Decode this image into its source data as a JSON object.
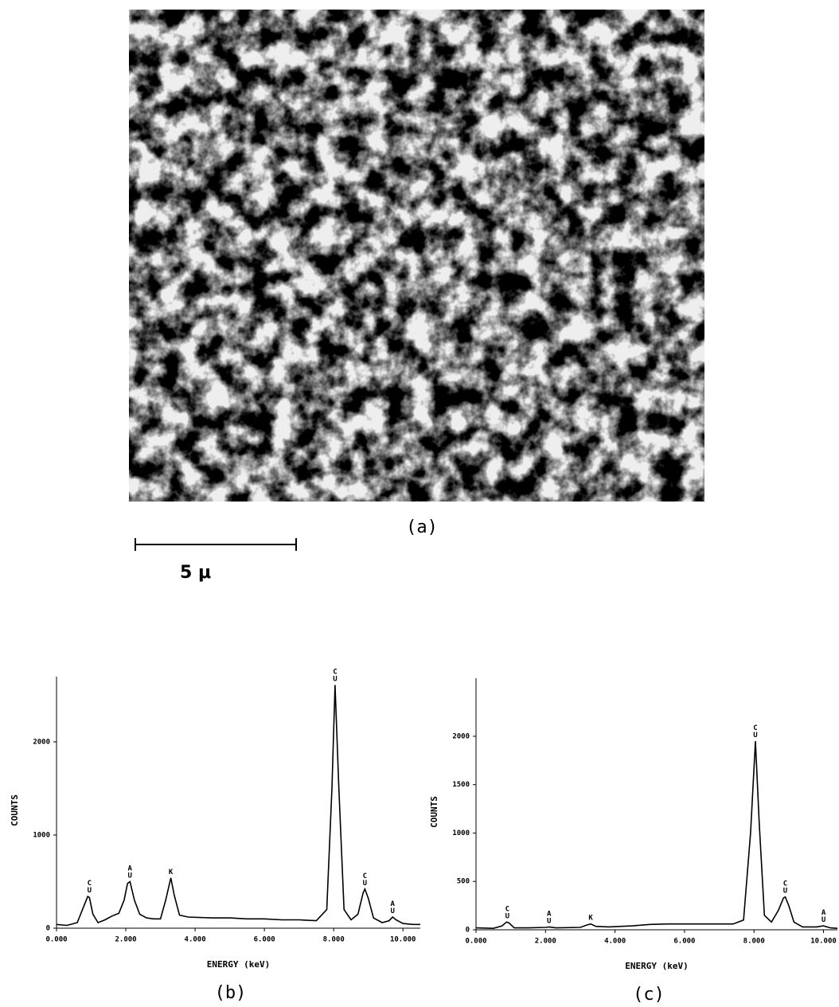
{
  "figure": {
    "caption": "(a)",
    "scale_bar": "5 μ"
  },
  "chart_data": [
    {
      "type": "line",
      "caption": "(b)",
      "x_label": "ENERGY (keV)",
      "y_label": "COUNTS",
      "xlim": [
        0,
        10.5
      ],
      "ylim": [
        0,
        2700
      ],
      "xticks": [
        {
          "value": 0,
          "label": "0.000"
        },
        {
          "value": 2,
          "label": "2.000"
        },
        {
          "value": 4,
          "label": "4.000"
        },
        {
          "value": 6,
          "label": "6.000"
        },
        {
          "value": 8,
          "label": "8.000"
        },
        {
          "value": 10,
          "label": "10.000"
        }
      ],
      "yticks": [
        0,
        1000,
        2000
      ],
      "series": [
        {
          "color": "#000000",
          "x": [
            0.0,
            0.3,
            0.6,
            0.75,
            0.9,
            0.95,
            1.05,
            1.2,
            1.4,
            1.6,
            1.8,
            1.95,
            2.05,
            2.12,
            2.25,
            2.4,
            2.6,
            2.8,
            3.0,
            3.15,
            3.3,
            3.4,
            3.55,
            3.8,
            4.5,
            5.0,
            5.5,
            6.0,
            6.5,
            7.0,
            7.5,
            7.8,
            7.95,
            8.04,
            8.15,
            8.3,
            8.5,
            8.7,
            8.85,
            8.9,
            9.0,
            9.15,
            9.4,
            9.6,
            9.7,
            9.8,
            10.0,
            10.3,
            10.5
          ],
          "values": [
            40,
            30,
            60,
            200,
            340,
            330,
            150,
            60,
            90,
            130,
            160,
            300,
            480,
            500,
            300,
            150,
            110,
            100,
            100,
            300,
            540,
            350,
            140,
            120,
            110,
            110,
            100,
            100,
            90,
            90,
            80,
            200,
            1500,
            2610,
            1500,
            200,
            90,
            150,
            380,
            420,
            320,
            110,
            60,
            80,
            120,
            90,
            50,
            40,
            40
          ]
        }
      ],
      "annotations": [
        {
          "text": "CU",
          "x": 0.95
        },
        {
          "text": "AU",
          "x": 2.12
        },
        {
          "text": "K",
          "x": 3.3
        },
        {
          "text": "CU",
          "x": 8.04
        },
        {
          "text": "CU",
          "x": 8.9
        },
        {
          "text": "AU",
          "x": 9.7
        }
      ]
    },
    {
      "type": "line",
      "caption": "(c)",
      "x_label": "ENERGY (keV)",
      "y_label": "COUNTS",
      "xlim": [
        0,
        10.4
      ],
      "ylim": [
        0,
        2600
      ],
      "xticks": [
        {
          "value": 0,
          "label": "0.000"
        },
        {
          "value": 2,
          "label": "2.000"
        },
        {
          "value": 4,
          "label": "4.000"
        },
        {
          "value": 6,
          "label": "6.000"
        },
        {
          "value": 8,
          "label": "8.000"
        },
        {
          "value": 10,
          "label": "10.000"
        }
      ],
      "yticks": [
        0,
        500,
        1000,
        1500,
        2000
      ],
      "series": [
        {
          "color": "#000000",
          "x": [
            0,
            0.5,
            0.75,
            0.88,
            0.95,
            1.1,
            1.5,
            2.0,
            2.1,
            2.3,
            3.0,
            3.2,
            3.3,
            3.45,
            3.8,
            4.5,
            5.0,
            5.5,
            6.0,
            6.5,
            7.0,
            7.4,
            7.7,
            7.9,
            8.04,
            8.15,
            8.3,
            8.5,
            8.7,
            8.85,
            8.9,
            9.0,
            9.15,
            9.4,
            9.8,
            10.0,
            10.2,
            10.4
          ],
          "values": [
            20,
            15,
            40,
            80,
            70,
            20,
            20,
            25,
            30,
            20,
            25,
            50,
            60,
            35,
            30,
            40,
            55,
            60,
            60,
            60,
            60,
            60,
            100,
            1000,
            1950,
            1100,
            150,
            80,
            200,
            330,
            340,
            250,
            80,
            30,
            30,
            40,
            20,
            15
          ]
        }
      ],
      "annotations": [
        {
          "text": "CU",
          "x": 0.9
        },
        {
          "text": "AU",
          "x": 2.1
        },
        {
          "text": "K",
          "x": 3.3
        },
        {
          "text": "CU",
          "x": 8.04
        },
        {
          "text": "CU",
          "x": 8.9
        },
        {
          "text": "AU",
          "x": 10.0
        }
      ]
    }
  ]
}
